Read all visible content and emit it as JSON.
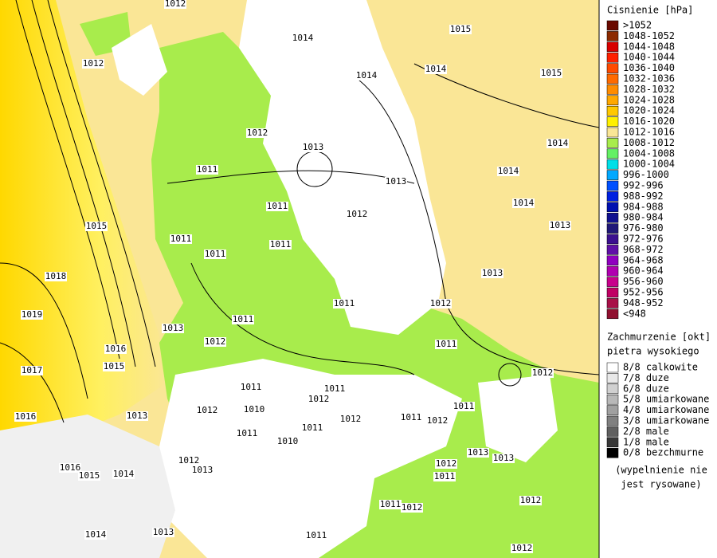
{
  "map": {
    "legend_pressure": {
      "title": "Cisnienie [hPa]",
      "items": [
        {
          "label": ">1052",
          "color": "#6a0a00"
        },
        {
          "label": "1048-1052",
          "color": "#8c2a00"
        },
        {
          "label": "1044-1048",
          "color": "#d80000"
        },
        {
          "label": "1040-1044",
          "color": "#ff2000"
        },
        {
          "label": "1036-1040",
          "color": "#ff4a00"
        },
        {
          "label": "1032-1036",
          "color": "#ff6a00"
        },
        {
          "label": "1028-1032",
          "color": "#ff8c00"
        },
        {
          "label": "1024-1028",
          "color": "#ffa800"
        },
        {
          "label": "1020-1024",
          "color": "#ffc800"
        },
        {
          "label": "1016-1020",
          "color": "#fff000"
        },
        {
          "label": "1012-1016",
          "color": "#fae696"
        },
        {
          "label": "1008-1012",
          "color": "#a8ec4c"
        },
        {
          "label": "1004-1008",
          "color": "#64f064"
        },
        {
          "label": "1000-1004",
          "color": "#00e0e8"
        },
        {
          "label": "996-1000",
          "color": "#00a8ff"
        },
        {
          "label": "992-996",
          "color": "#0050ff"
        },
        {
          "label": "988-992",
          "color": "#0020e0"
        },
        {
          "label": "984-988",
          "color": "#0010b0"
        },
        {
          "label": "980-984",
          "color": "#101090"
        },
        {
          "label": "976-980",
          "color": "#201878"
        },
        {
          "label": "972-976",
          "color": "#3c1090"
        },
        {
          "label": "968-972",
          "color": "#6010a8"
        },
        {
          "label": "964-968",
          "color": "#9000c0"
        },
        {
          "label": "960-964",
          "color": "#b000b0"
        },
        {
          "label": "956-960",
          "color": "#c8008c"
        },
        {
          "label": "952-956",
          "color": "#c00064"
        },
        {
          "label": "948-952",
          "color": "#a81048"
        },
        {
          "label": "<948",
          "color": "#901030"
        }
      ]
    },
    "legend_clouds": {
      "title": "Zachmurzenie [okt]",
      "subtitle": "pietra wysokiego",
      "items": [
        {
          "label": "8/8 calkowite",
          "color": "#ffffff"
        },
        {
          "label": "7/8 duze",
          "color": "#e8e8e8"
        },
        {
          "label": "6/8 duze",
          "color": "#d0d0d0"
        },
        {
          "label": "5/8 umiarkowane",
          "color": "#b8b8b8"
        },
        {
          "label": "4/8 umiarkowane",
          "color": "#a0a0a0"
        },
        {
          "label": "3/8 umiarkowane",
          "color": "#808080"
        },
        {
          "label": "2/8 male",
          "color": "#606060"
        },
        {
          "label": "1/8 male",
          "color": "#383838"
        },
        {
          "label": "0/8 bezchmurne",
          "color": "#000000"
        }
      ],
      "note": [
        "(wypelnienie nie",
        "jest rysowane)"
      ]
    },
    "isobar_labels": [
      "1012",
      "1014",
      "1015",
      "1012",
      "1014",
      "1014",
      "1015",
      "1012",
      "1013",
      "1014",
      "1011",
      "1014",
      "1013",
      "1011",
      "1012",
      "1014",
      "1015",
      "1011",
      "1011",
      "1013",
      "1011",
      "1018",
      "1019",
      "1013",
      "1011",
      "1012",
      "1013",
      "1011",
      "1012",
      "1016",
      "1011",
      "1017",
      "1015",
      "1012",
      "1011",
      "1011",
      "1012",
      "1011",
      "1016",
      "1013",
      "1012",
      "1010",
      "1012",
      "1011",
      "1012",
      "1011",
      "1011",
      "1010",
      "1013",
      "1013",
      "1012",
      "1016",
      "1012",
      "1011",
      "1013",
      "1015",
      "1014",
      "1011",
      "1012",
      "1012",
      "1011",
      "1012",
      "1014",
      "1013"
    ]
  }
}
